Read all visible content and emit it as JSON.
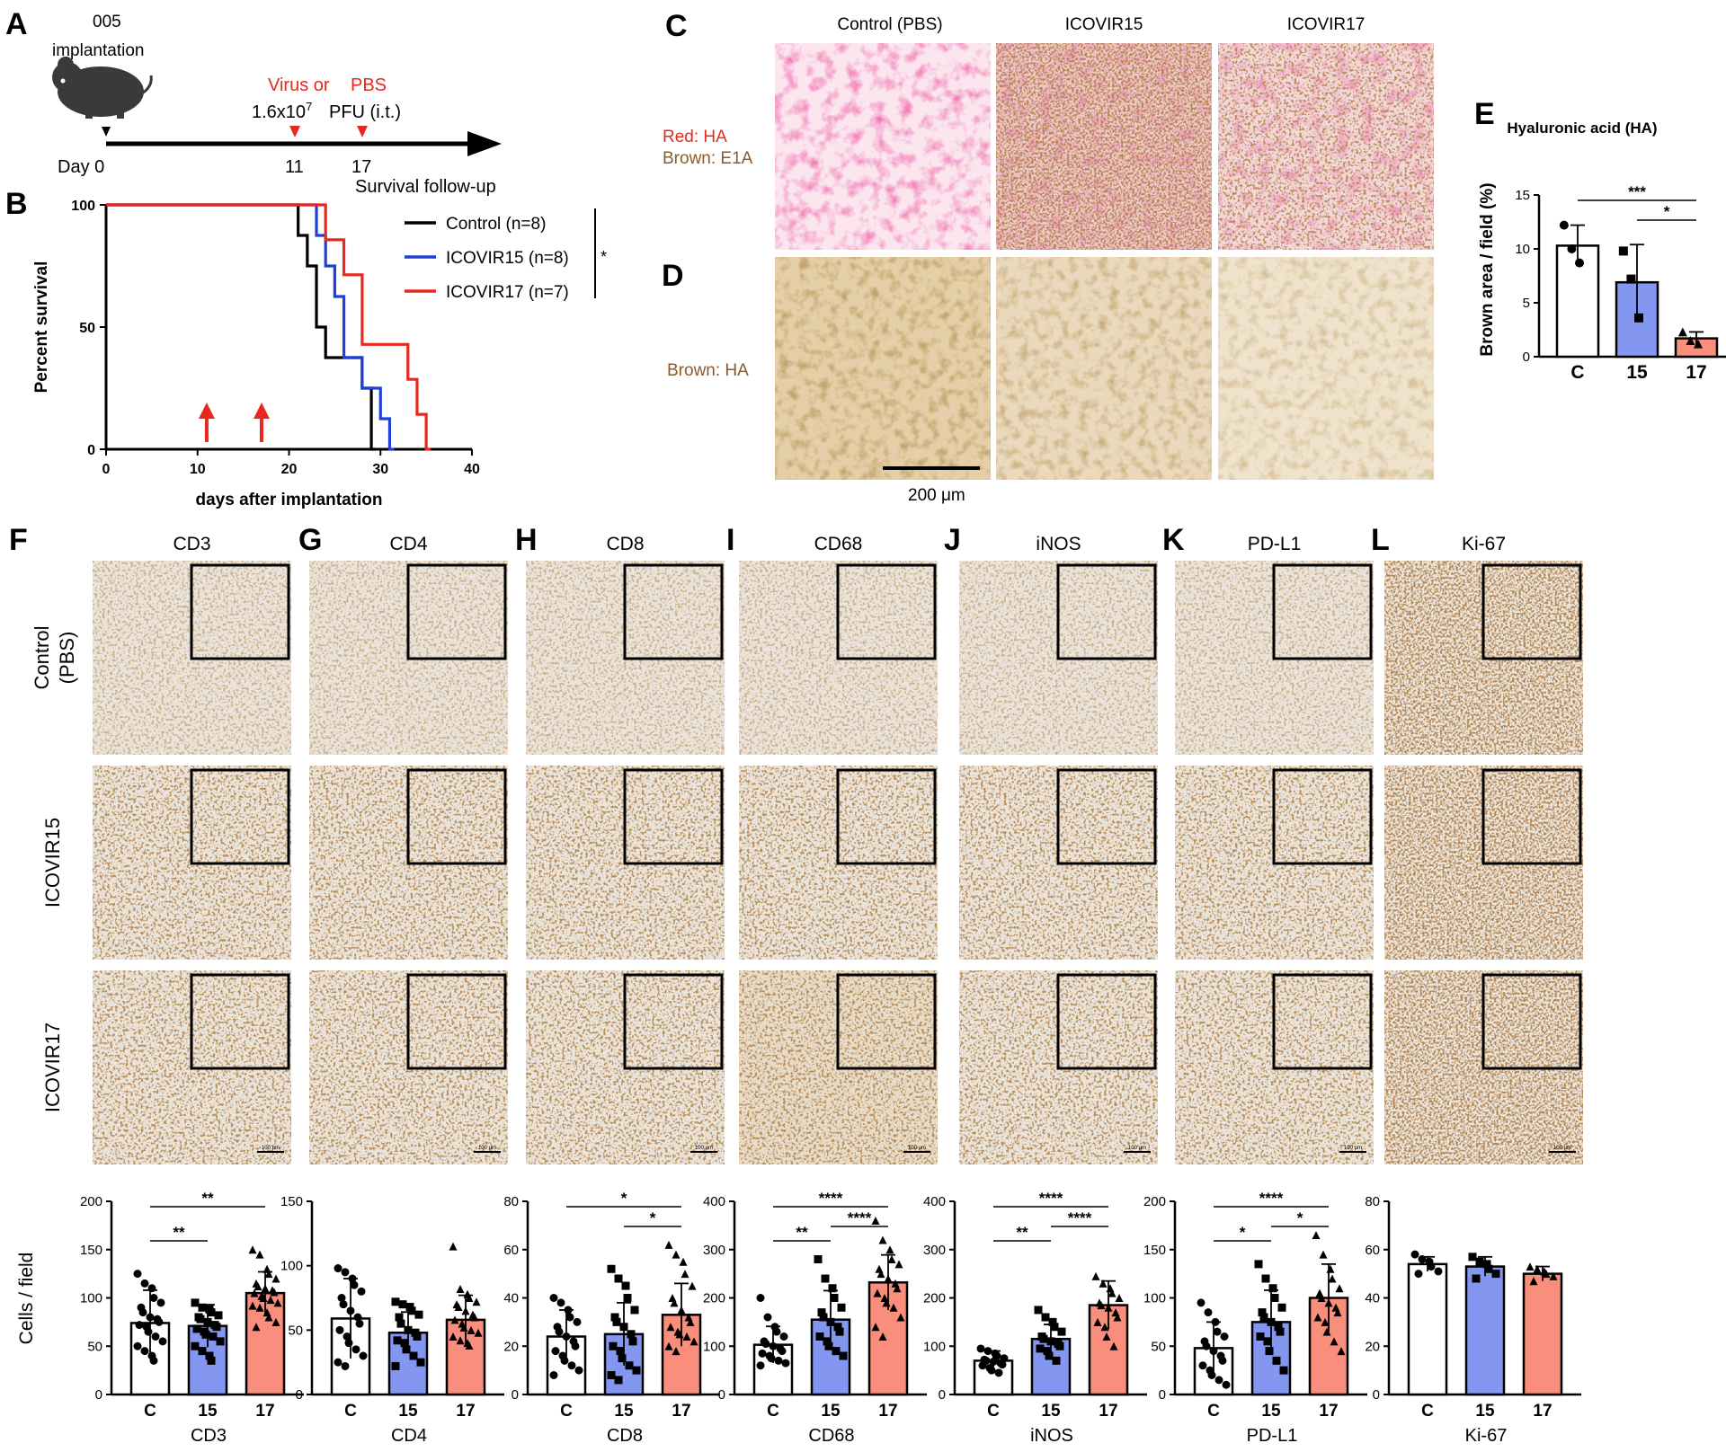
{
  "panel_letters": [
    "A",
    "B",
    "C",
    "D",
    "E",
    "F",
    "G",
    "H",
    "I",
    "J",
    "K",
    "L"
  ],
  "panelA": {
    "implant_code": "005",
    "implant_label": "implantation",
    "virus_word": "Virus or",
    "pbs_word": "PBS",
    "dose": "1.6x10",
    "dose_exp": "7",
    "dose_unit": "PFU (i.t.)",
    "day_label": "Day 0",
    "day11": "11",
    "day17": "17",
    "followup": "Survival follow-up",
    "colors": {
      "red": "#e8281e"
    }
  },
  "panelC": {
    "col_labels": [
      "Control (PBS)",
      "ICOVIR15",
      "ICOVIR17"
    ],
    "stain_red": "Red: HA",
    "stain_brown": "Brown: E1A"
  },
  "panelD": {
    "stain": "Brown: HA",
    "scalebar": "200 μm"
  },
  "ihc": {
    "markers": [
      "CD3",
      "CD4",
      "CD8",
      "CD68",
      "iNOS",
      "PD-L1",
      "Ki-67"
    ],
    "row_labels": [
      [
        "Control",
        "(PBS)"
      ],
      [
        "ICOVIR15"
      ],
      [
        "ICOVIR17"
      ]
    ],
    "scalebar": "100 μm"
  },
  "survival_chart": {
    "type": "line",
    "xlabel": "days after implantation",
    "ylabel": "Percent survival",
    "xlim": [
      0,
      40
    ],
    "ylim": [
      0,
      100
    ],
    "xticks": [
      0,
      10,
      20,
      30,
      40
    ],
    "yticks": [
      0,
      50,
      100
    ],
    "significance": "*",
    "treatment_days": [
      11,
      17
    ],
    "series": [
      {
        "name": "Control (n=8)",
        "color": "#000000",
        "x": [
          0,
          21,
          22,
          23,
          24,
          28,
          29,
          29.5
        ],
        "y": [
          100,
          87.5,
          75,
          50,
          37.5,
          25,
          0,
          0
        ]
      },
      {
        "name": "ICOVIR15 (n=8)",
        "color": "#1f3fd8",
        "x": [
          0,
          22,
          23,
          24,
          25,
          26,
          28,
          30,
          31,
          31.5
        ],
        "y": [
          100,
          100,
          87.5,
          75,
          62.5,
          37.5,
          25,
          12.5,
          0,
          0
        ]
      },
      {
        "name": "ICOVIR17 (n=7)",
        "color": "#e8281e",
        "x": [
          0,
          23,
          24,
          26,
          28,
          33,
          34,
          35,
          35.5
        ],
        "y": [
          100,
          100,
          85.7,
          71.4,
          42.9,
          28.6,
          14.3,
          0,
          0
        ]
      }
    ]
  },
  "ha_chart": {
    "type": "bar",
    "title": "Hyaluronic acid (HA)",
    "ylabel": "Brown area / field (%)",
    "categories": [
      "C",
      "15",
      "17"
    ],
    "values": [
      10.3,
      6.9,
      1.7
    ],
    "sd": [
      1.9,
      3.5,
      0.6
    ],
    "points": [
      [
        12.2,
        10.0,
        8.7
      ],
      [
        9.8,
        7.2,
        3.6
      ],
      [
        2.3,
        1.5,
        1.2
      ]
    ],
    "ylim": [
      0,
      15
    ],
    "yticks": [
      0,
      5,
      10,
      15
    ],
    "significance": [
      {
        "pair": [
          0,
          2
        ],
        "label": "***"
      },
      {
        "pair": [
          1,
          2
        ],
        "label": "*"
      }
    ],
    "colors": [
      "#ffffff",
      "#8497f0",
      "#f98e7c"
    ]
  },
  "chart_data": [
    {
      "type": "bar",
      "name": "CD3",
      "xlabel": "CD3",
      "ylabel": "Cells / field",
      "categories": [
        "C",
        "15",
        "17"
      ],
      "values": [
        74,
        71,
        105
      ],
      "sd": [
        34,
        22,
        22
      ],
      "ylim": [
        0,
        200
      ],
      "yticks": [
        0,
        50,
        100,
        150,
        200
      ],
      "significance": [
        {
          "pair": [
            0,
            1
          ],
          "label": "**"
        },
        {
          "pair": [
            0,
            2
          ],
          "label": "**"
        }
      ],
      "points": [
        [
          125,
          115,
          110,
          100,
          95,
          90,
          85,
          80,
          78,
          75,
          72,
          70,
          65,
          60,
          55,
          50,
          45,
          40,
          35
        ],
        [
          95,
          90,
          88,
          85,
          82,
          80,
          78,
          75,
          72,
          70,
          68,
          65,
          62,
          60,
          55,
          50,
          45,
          40,
          35
        ],
        [
          150,
          145,
          130,
          125,
          120,
          115,
          112,
          110,
          108,
          106,
          105,
          102,
          100,
          98,
          95,
          92,
          90,
          85,
          80,
          75,
          70
        ]
      ]
    },
    {
      "type": "bar",
      "name": "CD4",
      "xlabel": "CD4",
      "ylabel": "",
      "categories": [
        "C",
        "15",
        "17"
      ],
      "values": [
        59,
        48,
        58
      ],
      "sd": [
        31,
        16,
        19
      ],
      "ylim": [
        0,
        150
      ],
      "yticks": [
        0,
        50,
        100,
        150
      ],
      "significance": [],
      "points": [
        [
          98,
          95,
          90,
          85,
          80,
          75,
          70,
          65,
          60,
          55,
          50,
          45,
          40,
          35,
          30,
          25,
          22
        ],
        [
          72,
          70,
          68,
          65,
          62,
          60,
          55,
          50,
          48,
          45,
          42,
          40,
          35,
          30,
          25,
          22
        ],
        [
          115,
          82,
          78,
          75,
          72,
          70,
          68,
          65,
          62,
          60,
          58,
          55,
          52,
          50,
          48,
          45,
          42,
          40,
          38
        ]
      ]
    },
    {
      "type": "bar",
      "name": "CD8",
      "xlabel": "CD8",
      "ylabel": "",
      "categories": [
        "C",
        "15",
        "17"
      ],
      "values": [
        24,
        25,
        33
      ],
      "sd": [
        11,
        13,
        13
      ],
      "ylim": [
        0,
        80
      ],
      "yticks": [
        0,
        20,
        40,
        60,
        80
      ],
      "significance": [
        {
          "pair": [
            0,
            2
          ],
          "label": "*"
        },
        {
          "pair": [
            1,
            2
          ],
          "label": "*"
        }
      ],
      "points": [
        [
          40,
          38,
          35,
          32,
          30,
          28,
          26,
          24,
          22,
          20,
          18,
          16,
          14,
          12,
          10,
          8
        ],
        [
          52,
          48,
          45,
          40,
          35,
          32,
          30,
          28,
          25,
          22,
          20,
          18,
          15,
          12,
          10,
          8,
          6
        ],
        [
          62,
          58,
          55,
          50,
          45,
          40,
          38,
          35,
          32,
          30,
          28,
          26,
          25,
          24,
          22,
          20,
          18
        ]
      ]
    },
    {
      "type": "bar",
      "name": "CD68",
      "xlabel": "CD68",
      "ylabel": "",
      "categories": [
        "C",
        "15",
        "17"
      ],
      "values": [
        103,
        155,
        232
      ],
      "sd": [
        38,
        60,
        57
      ],
      "ylim": [
        0,
        400
      ],
      "yticks": [
        0,
        100,
        200,
        300,
        400
      ],
      "significance": [
        {
          "pair": [
            0,
            1
          ],
          "label": "**"
        },
        {
          "pair": [
            0,
            2
          ],
          "label": "****"
        },
        {
          "pair": [
            1,
            2
          ],
          "label": "****"
        }
      ],
      "points": [
        [
          200,
          160,
          140,
          130,
          120,
          110,
          105,
          100,
          95,
          90,
          85,
          80,
          75,
          70,
          65,
          60
        ],
        [
          280,
          240,
          220,
          200,
          180,
          170,
          160,
          150,
          140,
          130,
          120,
          110,
          100,
          90,
          80
        ],
        [
          360,
          320,
          300,
          280,
          270,
          260,
          250,
          240,
          230,
          220,
          210,
          200,
          190,
          180,
          160,
          140,
          120
        ]
      ]
    },
    {
      "type": "bar",
      "name": "iNOS",
      "xlabel": "iNOS",
      "ylabel": "",
      "categories": [
        "C",
        "15",
        "17"
      ],
      "values": [
        70,
        115,
        185
      ],
      "sd": [
        20,
        30,
        50
      ],
      "ylim": [
        0,
        400
      ],
      "yticks": [
        0,
        100,
        200,
        300,
        400
      ],
      "significance": [
        {
          "pair": [
            0,
            1
          ],
          "label": "**"
        },
        {
          "pair": [
            0,
            2
          ],
          "label": "****"
        },
        {
          "pair": [
            1,
            2
          ],
          "label": "****"
        }
      ],
      "points": [
        [
          95,
          90,
          85,
          80,
          75,
          72,
          70,
          68,
          65,
          62,
          60,
          55,
          50,
          45
        ],
        [
          175,
          160,
          150,
          140,
          130,
          120,
          115,
          110,
          105,
          100,
          95,
          90,
          80,
          70
        ],
        [
          245,
          230,
          220,
          210,
          200,
          190,
          185,
          180,
          170,
          160,
          150,
          140,
          120,
          100
        ]
      ]
    },
    {
      "type": "bar",
      "name": "PD-L1",
      "xlabel": "PD-L1",
      "ylabel": "",
      "categories": [
        "C",
        "15",
        "17"
      ],
      "values": [
        48,
        75,
        100
      ],
      "sd": [
        27,
        33,
        35
      ],
      "ylim": [
        0,
        200
      ],
      "yticks": [
        0,
        50,
        100,
        150,
        200
      ],
      "significance": [
        {
          "pair": [
            0,
            1
          ],
          "label": "*"
        },
        {
          "pair": [
            0,
            2
          ],
          "label": "****"
        },
        {
          "pair": [
            1,
            2
          ],
          "label": "*"
        }
      ],
      "points": [
        [
          95,
          85,
          75,
          65,
          60,
          55,
          50,
          45,
          40,
          35,
          30,
          25,
          20,
          15,
          10
        ],
        [
          135,
          120,
          110,
          100,
          90,
          85,
          80,
          75,
          70,
          65,
          60,
          55,
          45,
          35,
          25
        ],
        [
          165,
          145,
          130,
          120,
          110,
          105,
          100,
          95,
          90,
          85,
          80,
          75,
          65,
          55,
          45
        ]
      ]
    },
    {
      "type": "bar",
      "name": "Ki-67",
      "xlabel": "Ki-67",
      "ylabel": "",
      "categories": [
        "C",
        "15",
        "17"
      ],
      "values": [
        54,
        53,
        50
      ],
      "sd": [
        3,
        4,
        3
      ],
      "ylim": [
        0,
        80
      ],
      "yticks": [
        0,
        20,
        40,
        60,
        80
      ],
      "significance": [],
      "points": [
        [
          58,
          56,
          55,
          53,
          51,
          50
        ],
        [
          57,
          55,
          54,
          52,
          50,
          48
        ],
        [
          53,
          52,
          51,
          50,
          49,
          47
        ]
      ]
    }
  ]
}
